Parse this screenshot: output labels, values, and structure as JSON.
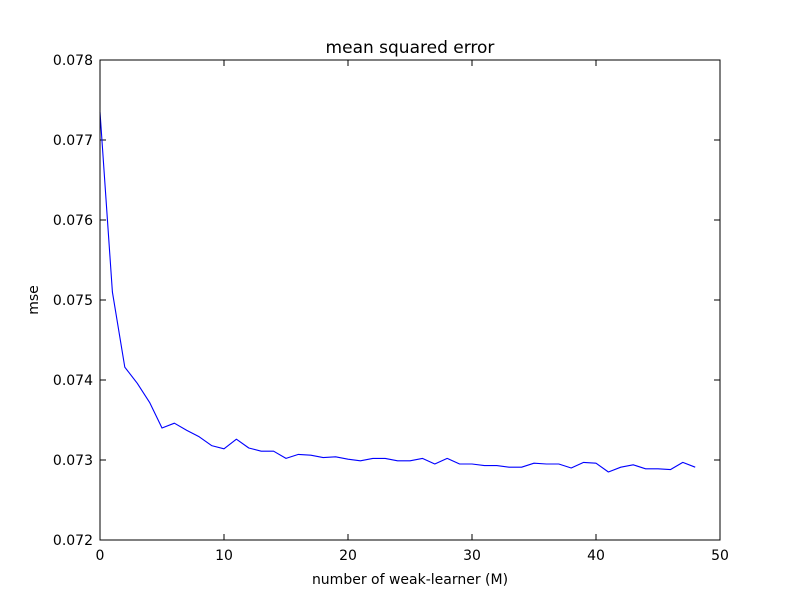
{
  "chart_data": {
    "type": "line",
    "title": "mean squared error",
    "xlabel": "number of weak-learner (M)",
    "ylabel": "mse",
    "xlim": [
      0,
      50
    ],
    "ylim": [
      0.072,
      0.078
    ],
    "xticks": [
      0,
      10,
      20,
      30,
      40,
      50
    ],
    "xtick_labels": [
      "0",
      "10",
      "20",
      "30",
      "40",
      "50"
    ],
    "yticks": [
      0.072,
      0.073,
      0.074,
      0.075,
      0.076,
      0.077,
      0.078
    ],
    "ytick_labels": [
      "0.072",
      "0.073",
      "0.074",
      "0.075",
      "0.076",
      "0.077",
      "0.078"
    ],
    "grid": false,
    "legend": null,
    "series": [
      {
        "color": "#0000ff",
        "x": [
          0,
          1,
          2,
          3,
          4,
          5,
          6,
          7,
          8,
          9,
          10,
          11,
          12,
          13,
          14,
          15,
          16,
          17,
          18,
          19,
          20,
          21,
          22,
          23,
          24,
          25,
          26,
          27,
          28,
          29,
          30,
          31,
          32,
          33,
          34,
          35,
          36,
          37,
          38,
          39,
          40,
          41,
          42,
          43,
          44,
          45,
          46,
          47,
          48
        ],
        "y": [
          0.07735,
          0.0751,
          0.07416,
          0.07396,
          0.07372,
          0.0734,
          0.07346,
          0.07337,
          0.07329,
          0.07318,
          0.07314,
          0.07326,
          0.07315,
          0.07311,
          0.07311,
          0.07302,
          0.07307,
          0.07306,
          0.07303,
          0.07304,
          0.07301,
          0.07299,
          0.07302,
          0.07302,
          0.07299,
          0.07299,
          0.07302,
          0.07295,
          0.07302,
          0.07295,
          0.07295,
          0.07293,
          0.07293,
          0.07291,
          0.07291,
          0.07296,
          0.07295,
          0.07295,
          0.0729,
          0.07297,
          0.07296,
          0.07285,
          0.07291,
          0.07294,
          0.07289,
          0.07289,
          0.07288,
          0.07297,
          0.07291
        ]
      }
    ]
  }
}
